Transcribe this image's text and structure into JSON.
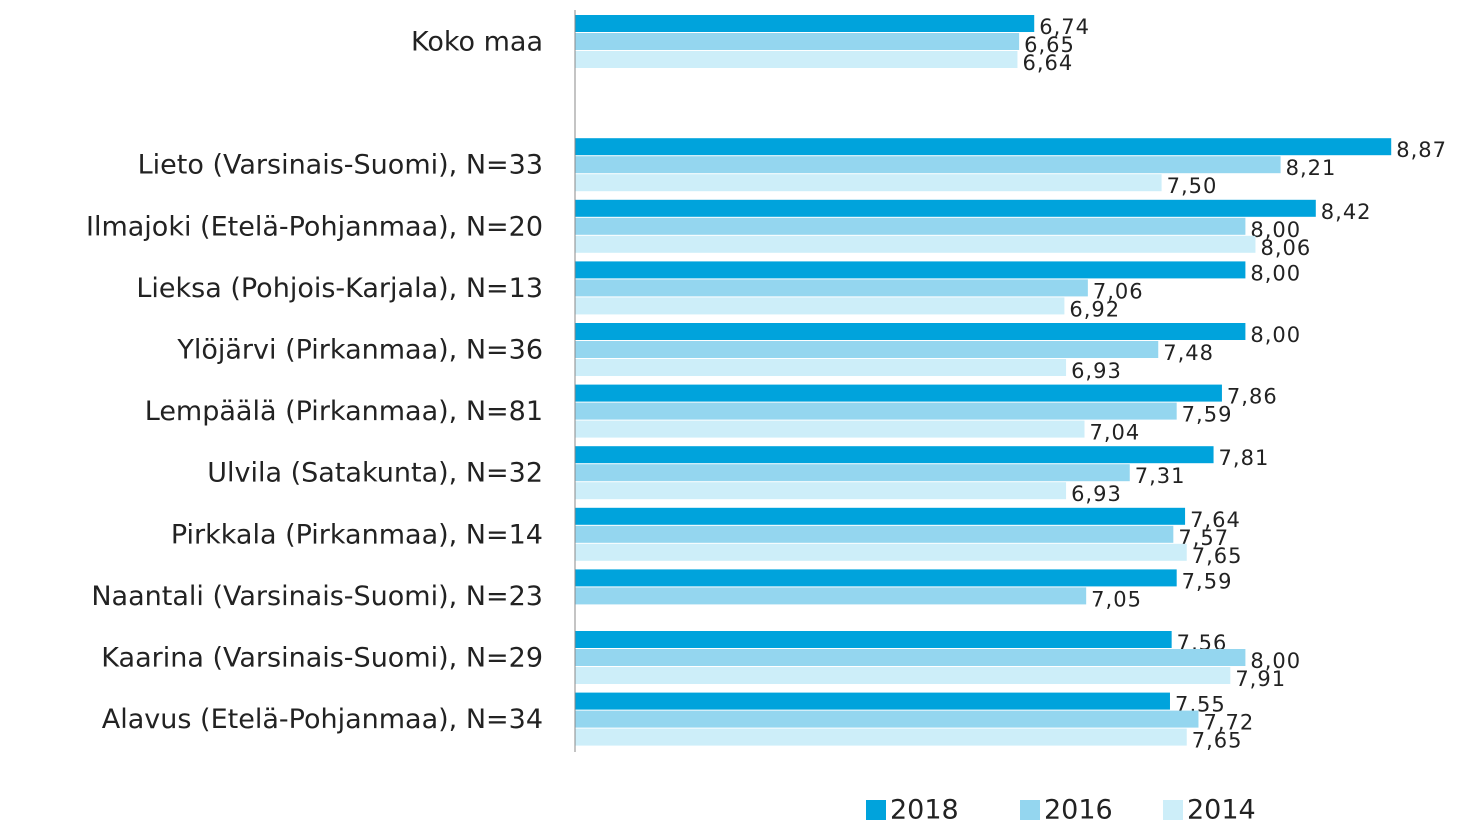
{
  "chart_data": {
    "type": "barh",
    "categories": [
      "Koko maa",
      null,
      "Lieto (Varsinais-Suomi), N=33",
      "Ilmajoki (Etelä-Pohjanmaa), N=20",
      "Lieksa (Pohjois-Karjala), N=13",
      "Ylöjärvi (Pirkanmaa), N=36",
      "Lempäälä (Pirkanmaa), N=81",
      "Ulvila (Satakunta), N=32",
      "Pirkkala (Pirkanmaa), N=14",
      "Naantali (Varsinais-Suomi), N=23",
      "Kaarina (Varsinais-Suomi), N=29",
      "Alavus (Etelä-Pohjanmaa), N=34"
    ],
    "series": [
      {
        "name": "2018",
        "color": "#00a3dc",
        "values": [
          6.74,
          null,
          8.87,
          8.42,
          8.0,
          8.0,
          7.86,
          7.81,
          7.64,
          7.59,
          7.56,
          7.55
        ],
        "value_labels": [
          "6,74",
          null,
          "8,87",
          "8,42",
          "8,00",
          "8,00",
          "7,86",
          "7,81",
          "7,64",
          "7,59",
          "7,56",
          "7,55"
        ]
      },
      {
        "name": "2016",
        "color": "#94d6ef",
        "values": [
          6.65,
          null,
          8.21,
          8.0,
          7.06,
          7.48,
          7.59,
          7.31,
          7.57,
          7.05,
          8.0,
          7.72
        ],
        "value_labels": [
          "6,65",
          null,
          "8,21",
          "8,00",
          "7,06",
          "7,48",
          "7,59",
          "7,31",
          "7,57",
          "7,05",
          "8,00",
          "7,72"
        ]
      },
      {
        "name": "2014",
        "color": "#cdeef9",
        "values": [
          6.64,
          null,
          7.5,
          8.06,
          6.92,
          6.93,
          7.04,
          6.93,
          7.65,
          null,
          7.91,
          7.65
        ],
        "value_labels": [
          "6,64",
          null,
          "7,50",
          "8,06",
          "6,92",
          "6,93",
          "7,04",
          "6,93",
          "7,65",
          null,
          "7,91",
          "7,65"
        ]
      }
    ],
    "xlim": [
      4,
      9
    ],
    "legend": "bottom"
  }
}
